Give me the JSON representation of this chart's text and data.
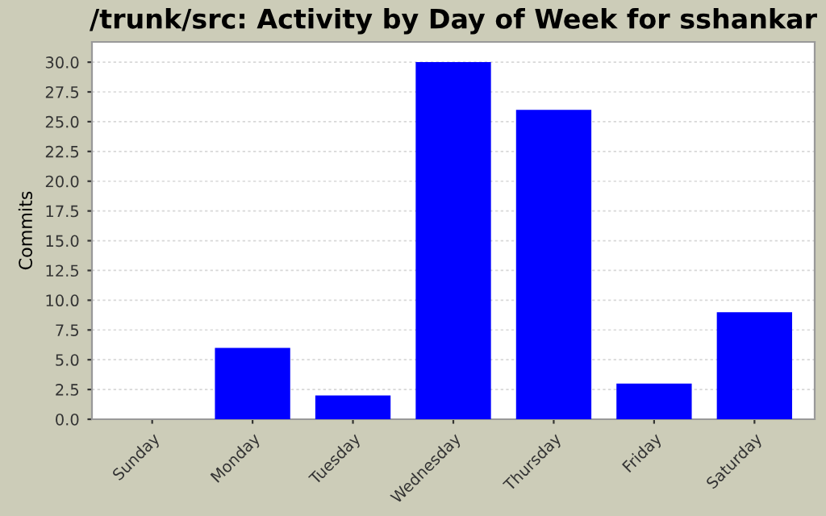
{
  "chart_data": {
    "type": "bar",
    "title": "/trunk/src: Activity by Day of Week for sshankar",
    "ylabel": "Commits",
    "categories": [
      "Sunday",
      "Monday",
      "Tuesday",
      "Wednesday",
      "Thursday",
      "Friday",
      "Saturday"
    ],
    "values": [
      0,
      6,
      2,
      30,
      26,
      3,
      9
    ],
    "color": "#0000ff",
    "ylim": [
      0,
      31.7
    ],
    "yticks": [
      {
        "value": 0,
        "label": "0.0"
      },
      {
        "value": 2.5,
        "label": "2.5"
      },
      {
        "value": 5,
        "label": "5.0"
      },
      {
        "value": 7.5,
        "label": "7.5"
      },
      {
        "value": 10,
        "label": "10.0"
      },
      {
        "value": 12.5,
        "label": "12.5"
      },
      {
        "value": 15,
        "label": "15.0"
      },
      {
        "value": 17.5,
        "label": "17.5"
      },
      {
        "value": 20,
        "label": "20.0"
      },
      {
        "value": 22.5,
        "label": "22.5"
      },
      {
        "value": 25,
        "label": "25.0"
      },
      {
        "value": 27.5,
        "label": "27.5"
      },
      {
        "value": 30,
        "label": "30.0"
      }
    ],
    "grid": "y"
  }
}
